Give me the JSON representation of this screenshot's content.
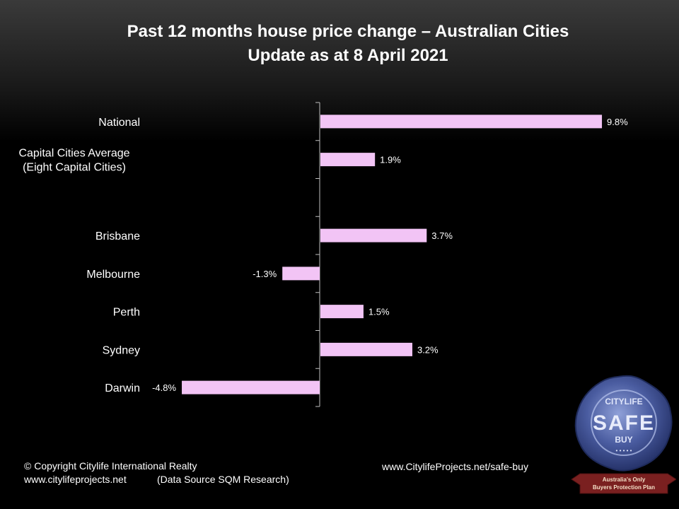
{
  "title": {
    "line1": "Past 12 months house price change – Australian Cities",
    "line2": "Update as at 8 April 2021"
  },
  "chart_data": {
    "type": "bar",
    "orientation": "horizontal",
    "title": "Past 12 months house price change – Australian Cities",
    "subtitle": "Update as at 8 April 2021",
    "categories": [
      [
        "National"
      ],
      [
        "Capital Cities Average",
        "(Eight Capital Cities)"
      ],
      [
        ""
      ],
      [
        "Brisbane"
      ],
      [
        "Melbourne"
      ],
      [
        "Perth"
      ],
      [
        "Sydney"
      ],
      [
        "Darwin"
      ]
    ],
    "values": [
      9.8,
      1.9,
      null,
      3.7,
      -1.3,
      1.5,
      3.2,
      -4.8
    ],
    "data_labels": [
      "9.8%",
      "1.9%",
      "",
      "3.7%",
      "-1.3%",
      "1.5%",
      "3.2%",
      "-4.8%"
    ],
    "unit": "%",
    "xlim": [
      -4.8,
      9.8
    ],
    "bar_color": "#f2c4f5",
    "grid": false,
    "legend": "none"
  },
  "footer": {
    "copyright": "© Copyright Citylife International  Realty",
    "website": "www.citylifeprojects.net",
    "source": "(Data Source SQM Research)",
    "safe_buy_url": "www.CitylifeProjects.net/safe-buy"
  },
  "seal": {
    "top_text": "CITYLIFE",
    "main_text": "SAFE",
    "sub_text": "BUY",
    "ribbon_line1": "Australia's Only",
    "ribbon_line2": "Buyers Protection Plan",
    "seal_color": "#3d4f8f",
    "ribbon_color": "#7a2020"
  }
}
